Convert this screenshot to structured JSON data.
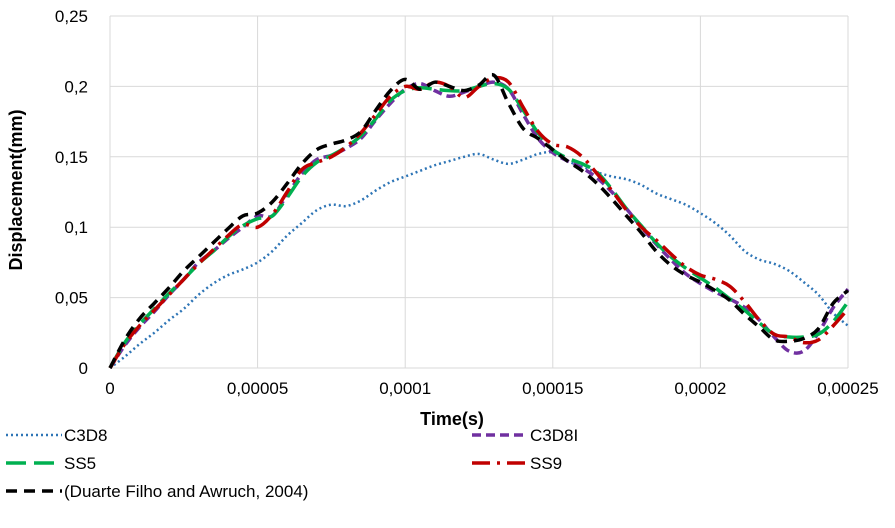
{
  "chart_data": {
    "type": "line",
    "title": "",
    "xlabel": "Time(s)",
    "ylabel": "Displacement(mm)",
    "xlim": [
      0,
      0.00025
    ],
    "ylim": [
      0,
      0.25
    ],
    "x_ticks": [
      "0",
      "0,00005",
      "0,0001",
      "0,00015",
      "0,0002",
      "0,00025"
    ],
    "y_ticks": [
      "0",
      "0,05",
      "0,1",
      "0,15",
      "0,2",
      "0,25"
    ],
    "grid": true,
    "legend_position": "bottom",
    "series": [
      {
        "name": "C3D8",
        "color": "#2E75B6",
        "dash": "dotted",
        "points": [
          [
            0,
            0
          ],
          [
            5e-06,
            0.008
          ],
          [
            1e-05,
            0.017
          ],
          [
            1.5e-05,
            0.025
          ],
          [
            2e-05,
            0.034
          ],
          [
            2.5e-05,
            0.042
          ],
          [
            3e-05,
            0.052
          ],
          [
            3.5e-05,
            0.06
          ],
          [
            4e-05,
            0.066
          ],
          [
            4.5e-05,
            0.07
          ],
          [
            5e-05,
            0.075
          ],
          [
            5.5e-05,
            0.083
          ],
          [
            6e-05,
            0.094
          ],
          [
            6.5e-05,
            0.103
          ],
          [
            7e-05,
            0.112
          ],
          [
            7.5e-05,
            0.116
          ],
          [
            8e-05,
            0.115
          ],
          [
            8.5e-05,
            0.119
          ],
          [
            9e-05,
            0.126
          ],
          [
            9.5e-05,
            0.132
          ],
          [
            0.0001,
            0.136
          ],
          [
            0.000105,
            0.14
          ],
          [
            0.00011,
            0.144
          ],
          [
            0.000115,
            0.147
          ],
          [
            0.00012,
            0.15
          ],
          [
            0.000125,
            0.152
          ],
          [
            0.00013,
            0.148
          ],
          [
            0.000135,
            0.145
          ],
          [
            0.00014,
            0.148
          ],
          [
            0.000145,
            0.152
          ],
          [
            0.00015,
            0.153
          ],
          [
            0.000155,
            0.147
          ],
          [
            0.00016,
            0.143
          ],
          [
            0.000165,
            0.139
          ],
          [
            0.00017,
            0.136
          ],
          [
            0.000175,
            0.134
          ],
          [
            0.00018,
            0.13
          ],
          [
            0.000185,
            0.124
          ],
          [
            0.00019,
            0.12
          ],
          [
            0.000195,
            0.116
          ],
          [
            0.0002,
            0.11
          ],
          [
            0.000205,
            0.103
          ],
          [
            0.00021,
            0.094
          ],
          [
            0.000215,
            0.083
          ],
          [
            0.00022,
            0.077
          ],
          [
            0.000225,
            0.074
          ],
          [
            0.00023,
            0.069
          ],
          [
            0.000235,
            0.061
          ],
          [
            0.00024,
            0.052
          ],
          [
            0.000245,
            0.039
          ],
          [
            0.00025,
            0.03
          ]
        ]
      },
      {
        "name": "C3D8I",
        "color": "#7030A0",
        "dash": "dash",
        "points": [
          [
            0,
            0
          ],
          [
            5e-06,
            0.016
          ],
          [
            1e-05,
            0.029
          ],
          [
            1.5e-05,
            0.04
          ],
          [
            2e-05,
            0.052
          ],
          [
            2.5e-05,
            0.063
          ],
          [
            3e-05,
            0.075
          ],
          [
            3.5e-05,
            0.083
          ],
          [
            4e-05,
            0.092
          ],
          [
            4.5e-05,
            0.1
          ],
          [
            5e-05,
            0.108
          ],
          [
            5.5e-05,
            0.108
          ],
          [
            6e-05,
            0.123
          ],
          [
            6.5e-05,
            0.138
          ],
          [
            7e-05,
            0.148
          ],
          [
            7.5e-05,
            0.151
          ],
          [
            8e-05,
            0.156
          ],
          [
            8.5e-05,
            0.163
          ],
          [
            9e-05,
            0.176
          ],
          [
            9.5e-05,
            0.188
          ],
          [
            0.0001,
            0.198
          ],
          [
            0.000105,
            0.202
          ],
          [
            0.00011,
            0.197
          ],
          [
            0.000115,
            0.193
          ],
          [
            0.00012,
            0.196
          ],
          [
            0.000125,
            0.2
          ],
          [
            0.00013,
            0.203
          ],
          [
            0.000135,
            0.198
          ],
          [
            0.00014,
            0.18
          ],
          [
            0.000145,
            0.163
          ],
          [
            0.00015,
            0.153
          ],
          [
            0.000155,
            0.147
          ],
          [
            0.00016,
            0.142
          ],
          [
            0.000165,
            0.135
          ],
          [
            0.00017,
            0.125
          ],
          [
            0.000175,
            0.113
          ],
          [
            0.00018,
            0.1
          ],
          [
            0.000185,
            0.088
          ],
          [
            0.00019,
            0.077
          ],
          [
            0.000195,
            0.067
          ],
          [
            0.0002,
            0.06
          ],
          [
            0.000205,
            0.054
          ],
          [
            0.00021,
            0.049
          ],
          [
            0.000215,
            0.043
          ],
          [
            0.00022,
            0.034
          ],
          [
            0.000225,
            0.022
          ],
          [
            0.00023,
            0.012
          ],
          [
            0.000235,
            0.012
          ],
          [
            0.00024,
            0.025
          ],
          [
            0.000245,
            0.043
          ],
          [
            0.00025,
            0.056
          ]
        ]
      },
      {
        "name": "SS5",
        "color": "#00B050",
        "dash": "longdash",
        "points": [
          [
            0,
            0
          ],
          [
            5e-06,
            0.018
          ],
          [
            1e-05,
            0.031
          ],
          [
            1.5e-05,
            0.042
          ],
          [
            2e-05,
            0.053
          ],
          [
            2.5e-05,
            0.063
          ],
          [
            3e-05,
            0.074
          ],
          [
            3.5e-05,
            0.083
          ],
          [
            4e-05,
            0.093
          ],
          [
            4.5e-05,
            0.101
          ],
          [
            5e-05,
            0.106
          ],
          [
            5.5e-05,
            0.108
          ],
          [
            6e-05,
            0.121
          ],
          [
            6.5e-05,
            0.136
          ],
          [
            7e-05,
            0.146
          ],
          [
            7.5e-05,
            0.151
          ],
          [
            8e-05,
            0.157
          ],
          [
            8.5e-05,
            0.165
          ],
          [
            9e-05,
            0.177
          ],
          [
            9.5e-05,
            0.19
          ],
          [
            0.0001,
            0.197
          ],
          [
            0.000105,
            0.199
          ],
          [
            0.00011,
            0.198
          ],
          [
            0.000115,
            0.197
          ],
          [
            0.00012,
            0.197
          ],
          [
            0.000125,
            0.2
          ],
          [
            0.00013,
            0.202
          ],
          [
            0.000135,
            0.198
          ],
          [
            0.00014,
            0.183
          ],
          [
            0.000145,
            0.167
          ],
          [
            0.00015,
            0.155
          ],
          [
            0.000155,
            0.149
          ],
          [
            0.00016,
            0.145
          ],
          [
            0.000165,
            0.139
          ],
          [
            0.00017,
            0.127
          ],
          [
            0.000175,
            0.113
          ],
          [
            0.00018,
            0.101
          ],
          [
            0.000185,
            0.089
          ],
          [
            0.00019,
            0.079
          ],
          [
            0.000195,
            0.071
          ],
          [
            0.0002,
            0.064
          ],
          [
            0.000205,
            0.057
          ],
          [
            0.00021,
            0.049
          ],
          [
            0.000215,
            0.041
          ],
          [
            0.00022,
            0.032
          ],
          [
            0.000225,
            0.024
          ],
          [
            0.00023,
            0.022
          ],
          [
            0.000235,
            0.022
          ],
          [
            0.00024,
            0.024
          ],
          [
            0.000245,
            0.033
          ],
          [
            0.00025,
            0.047
          ]
        ]
      },
      {
        "name": "SS9",
        "color": "#C00000",
        "dash": "dashdot",
        "points": [
          [
            0,
            0
          ],
          [
            5e-06,
            0.017
          ],
          [
            1e-05,
            0.03
          ],
          [
            1.5e-05,
            0.041
          ],
          [
            2e-05,
            0.052
          ],
          [
            2.5e-05,
            0.063
          ],
          [
            3e-05,
            0.074
          ],
          [
            3.5e-05,
            0.084
          ],
          [
            4e-05,
            0.094
          ],
          [
            4.5e-05,
            0.102
          ],
          [
            5e-05,
            0.1
          ],
          [
            5.5e-05,
            0.109
          ],
          [
            6e-05,
            0.125
          ],
          [
            6.5e-05,
            0.141
          ],
          [
            7e-05,
            0.146
          ],
          [
            7.5e-05,
            0.15
          ],
          [
            8e-05,
            0.157
          ],
          [
            8.5e-05,
            0.167
          ],
          [
            9e-05,
            0.18
          ],
          [
            9.5e-05,
            0.193
          ],
          [
            0.0001,
            0.2
          ],
          [
            0.000105,
            0.198
          ],
          [
            0.00011,
            0.203
          ],
          [
            0.000115,
            0.2
          ],
          [
            0.00012,
            0.192
          ],
          [
            0.000125,
            0.2
          ],
          [
            0.00013,
            0.206
          ],
          [
            0.000135,
            0.203
          ],
          [
            0.00014,
            0.185
          ],
          [
            0.000145,
            0.168
          ],
          [
            0.00015,
            0.159
          ],
          [
            0.000155,
            0.157
          ],
          [
            0.00016,
            0.15
          ],
          [
            0.000165,
            0.138
          ],
          [
            0.00017,
            0.126
          ],
          [
            0.000175,
            0.112
          ],
          [
            0.00018,
            0.1
          ],
          [
            0.000185,
            0.091
          ],
          [
            0.00019,
            0.081
          ],
          [
            0.000195,
            0.072
          ],
          [
            0.0002,
            0.066
          ],
          [
            0.000205,
            0.063
          ],
          [
            0.00021,
            0.058
          ],
          [
            0.000215,
            0.047
          ],
          [
            0.00022,
            0.034
          ],
          [
            0.000225,
            0.024
          ],
          [
            0.00023,
            0.022
          ],
          [
            0.000235,
            0.018
          ],
          [
            0.00024,
            0.02
          ],
          [
            0.000245,
            0.03
          ],
          [
            0.00025,
            0.042
          ]
        ]
      },
      {
        "name": "(Duarte Filho and Awruch, 2004)",
        "color": "#000000",
        "dash": "bigdash",
        "points": [
          [
            0,
            0
          ],
          [
            5e-06,
            0.02
          ],
          [
            1e-05,
            0.035
          ],
          [
            1.5e-05,
            0.046
          ],
          [
            2e-05,
            0.057
          ],
          [
            2.5e-05,
            0.069
          ],
          [
            3e-05,
            0.079
          ],
          [
            3.5e-05,
            0.089
          ],
          [
            4e-05,
            0.099
          ],
          [
            4.5e-05,
            0.108
          ],
          [
            5e-05,
            0.11
          ],
          [
            5.5e-05,
            0.118
          ],
          [
            6e-05,
            0.131
          ],
          [
            6.5e-05,
            0.145
          ],
          [
            7e-05,
            0.155
          ],
          [
            7.5e-05,
            0.159
          ],
          [
            8e-05,
            0.162
          ],
          [
            8.5e-05,
            0.168
          ],
          [
            9e-05,
            0.183
          ],
          [
            9.5e-05,
            0.197
          ],
          [
            0.0001,
            0.205
          ],
          [
            0.000105,
            0.198
          ],
          [
            0.00011,
            0.203
          ],
          [
            0.000115,
            0.2
          ],
          [
            0.00012,
            0.197
          ],
          [
            0.000125,
            0.201
          ],
          [
            0.00013,
            0.208
          ],
          [
            0.000135,
            0.188
          ],
          [
            0.00014,
            0.17
          ],
          [
            0.000145,
            0.163
          ],
          [
            0.00015,
            0.155
          ],
          [
            0.000155,
            0.147
          ],
          [
            0.00016,
            0.14
          ],
          [
            0.000165,
            0.131
          ],
          [
            0.00017,
            0.12
          ],
          [
            0.000175,
            0.108
          ],
          [
            0.00018,
            0.096
          ],
          [
            0.000185,
            0.083
          ],
          [
            0.00019,
            0.073
          ],
          [
            0.000195,
            0.066
          ],
          [
            0.0002,
            0.061
          ],
          [
            0.000205,
            0.055
          ],
          [
            0.00021,
            0.048
          ],
          [
            0.000215,
            0.038
          ],
          [
            0.00022,
            0.029
          ],
          [
            0.000225,
            0.02
          ],
          [
            0.00023,
            0.019
          ],
          [
            0.000235,
            0.021
          ],
          [
            0.00024,
            0.028
          ],
          [
            0.000245,
            0.046
          ],
          [
            0.00025,
            0.055
          ]
        ]
      }
    ]
  }
}
